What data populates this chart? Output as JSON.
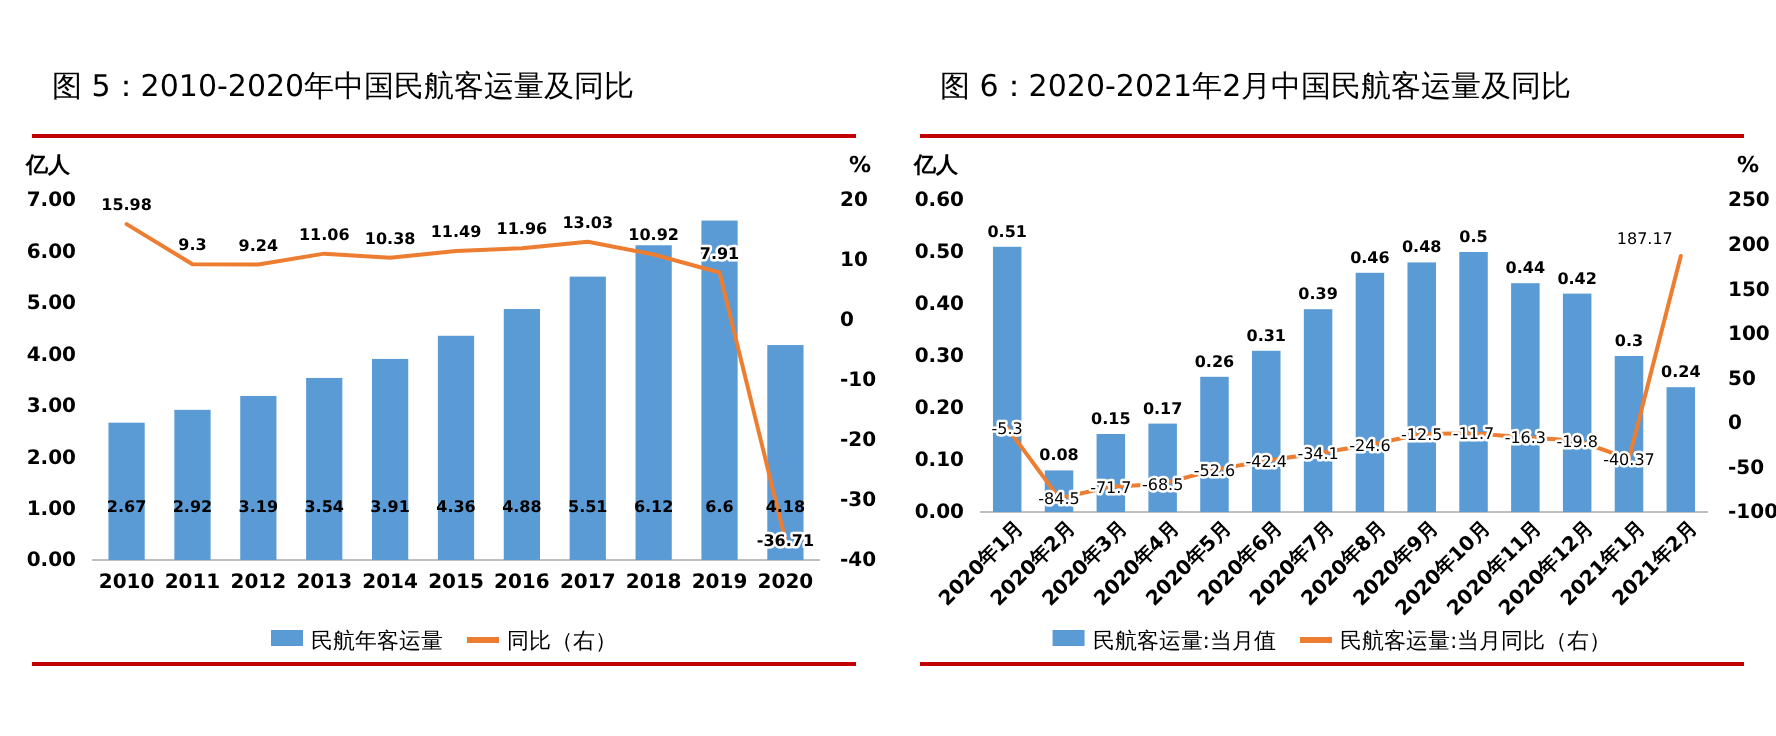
{
  "chart_data": [
    {
      "type": "bar",
      "title": "图 5：2010-2020年中国民航客运量及同比",
      "ylabel": "亿人",
      "y2label": "%",
      "categories": [
        "2010",
        "2011",
        "2012",
        "2013",
        "2014",
        "2015",
        "2016",
        "2017",
        "2018",
        "2019",
        "2020"
      ],
      "series": [
        {
          "name": "民航年客运量",
          "type": "bar",
          "color": "#5b9bd5",
          "values": [
            2.67,
            2.92,
            3.19,
            3.54,
            3.91,
            4.36,
            4.88,
            5.51,
            6.12,
            6.6,
            4.18
          ]
        },
        {
          "name": "同比（右）",
          "type": "line",
          "axis": "y2",
          "color": "#ed7d31",
          "values": [
            15.98,
            9.3,
            9.24,
            11.06,
            10.38,
            11.49,
            11.96,
            13.03,
            10.92,
            7.91,
            -36.71
          ]
        }
      ],
      "ylim": [
        0,
        7
      ],
      "yticks": [
        {
          "value": 0,
          "label": "0.00"
        },
        {
          "value": 1,
          "label": "1.00"
        },
        {
          "value": 2,
          "label": "2.00"
        },
        {
          "value": 3,
          "label": "3.00"
        },
        {
          "value": 4,
          "label": "4.00"
        },
        {
          "value": 5,
          "label": "5.00"
        },
        {
          "value": 6,
          "label": "6.00"
        },
        {
          "value": 7,
          "label": "7.00"
        }
      ],
      "y2lim": [
        -40,
        20
      ],
      "y2ticks": [
        -40,
        -30,
        -20,
        -10,
        0,
        10,
        20
      ],
      "data_labels": true,
      "legend": "bottom",
      "grid": false
    },
    {
      "type": "bar",
      "title": "图 6：2020-2021年2月中国民航客运量及同比",
      "ylabel": "亿人",
      "y2label": "%",
      "categories": [
        "2020年1月",
        "2020年2月",
        "2020年3月",
        "2020年4月",
        "2020年5月",
        "2020年6月",
        "2020年7月",
        "2020年8月",
        "2020年9月",
        "2020年10月",
        "2020年11月",
        "2020年12月",
        "2021年1月",
        "2021年2月"
      ],
      "series": [
        {
          "name": "民航客运量:当月值",
          "type": "bar",
          "color": "#5b9bd5",
          "values": [
            0.51,
            0.08,
            0.15,
            0.17,
            0.26,
            0.31,
            0.39,
            0.46,
            0.48,
            0.5,
            0.44,
            0.42,
            0.3,
            0.24
          ]
        },
        {
          "name": "民航客运量:当月同比（右）",
          "type": "line",
          "axis": "y2",
          "color": "#ed7d31",
          "values": [
            -5.3,
            -84.5,
            -71.7,
            -68.5,
            -52.6,
            -42.4,
            -34.1,
            -24.6,
            -12.5,
            -11.7,
            -16.3,
            -19.8,
            -40.37,
            187.17
          ]
        }
      ],
      "ylim": [
        0,
        0.6
      ],
      "yticks": [
        {
          "value": 0,
          "label": "0.00"
        },
        {
          "value": 0.1,
          "label": "0.10"
        },
        {
          "value": 0.2,
          "label": "0.20"
        },
        {
          "value": 0.3,
          "label": "0.30"
        },
        {
          "value": 0.4,
          "label": "0.40"
        },
        {
          "value": 0.5,
          "label": "0.50"
        },
        {
          "value": 0.6,
          "label": "0.60"
        }
      ],
      "y2lim": [
        -100,
        250
      ],
      "y2ticks": [
        -100,
        -50,
        0,
        50,
        100,
        150,
        200,
        250
      ],
      "data_labels": true,
      "legend": "bottom",
      "grid": false
    }
  ]
}
